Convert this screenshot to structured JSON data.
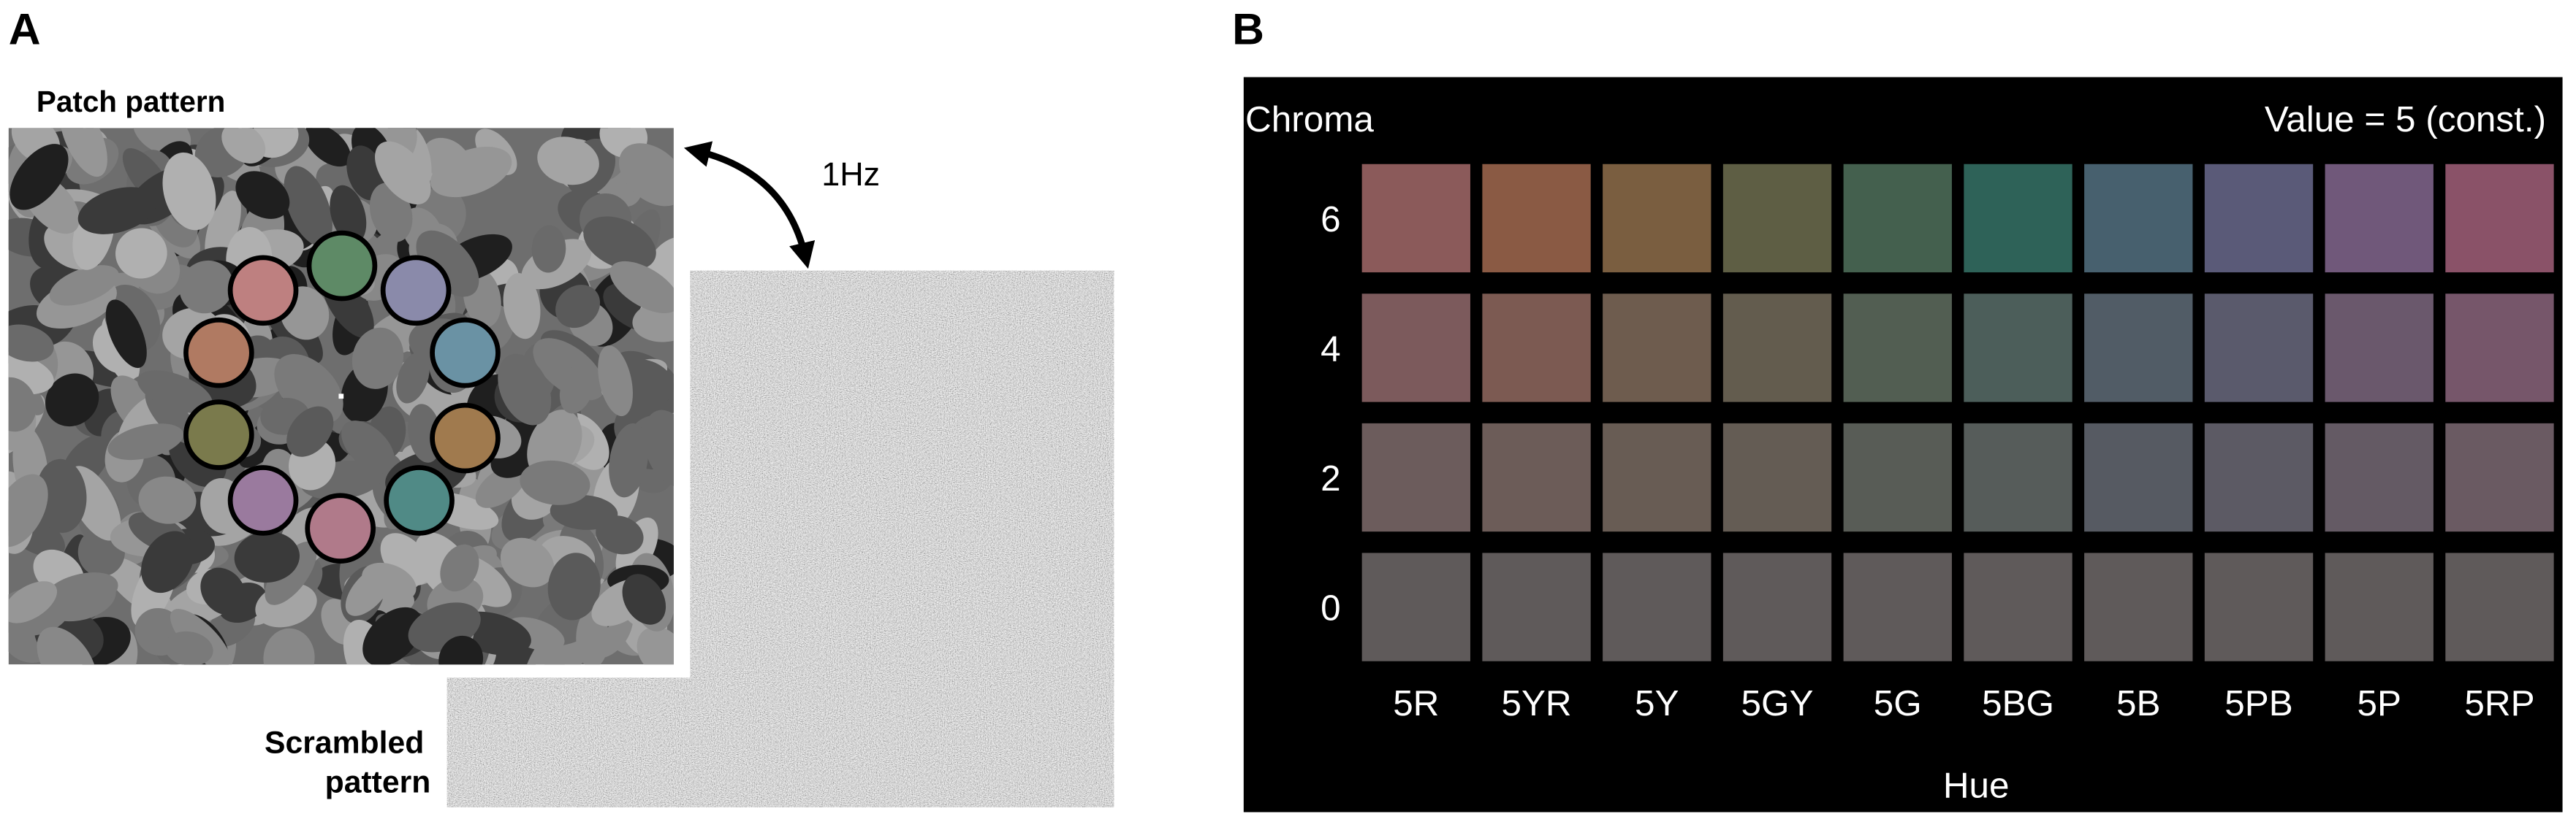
{
  "panel_a": {
    "label": "A",
    "patch_title": "Patch pattern",
    "frequency": "1Hz",
    "scrambled_title": [
      "Scrambled",
      "pattern"
    ]
  },
  "panel_b": {
    "label": "B",
    "row_axis_title": "Chroma",
    "constant_note": "Value = 5 (const.)",
    "chroma_levels": [
      "6",
      "4",
      "2",
      "0"
    ],
    "hues": [
      "5R",
      "5YR",
      "5Y",
      "5GY",
      "5G",
      "5BG",
      "5B",
      "5PB",
      "5P",
      "5RP"
    ],
    "column_axis_title": "Hue",
    "swatch_colors": [
      [
        "#8b5a5a",
        "#8a5a44",
        "#7a5e40",
        "#5e5e44",
        "#44604e",
        "#2e6258",
        "#47606e",
        "#5a5a78",
        "#70587a",
        "#8a5268"
      ],
      [
        "#7c5a5c",
        "#7c5a52",
        "#6e5c4e",
        "#635c4e",
        "#525e52",
        "#4c5e5a",
        "#515c66",
        "#5a5a6c",
        "#6a586c",
        "#76566a"
      ],
      [
        "#6c5c5c",
        "#6c5c58",
        "#685c54",
        "#645c54",
        "#585c56",
        "#565c5a",
        "#565a62",
        "#5c5a64",
        "#645a64",
        "#6a5a62"
      ],
      [
        "#5f5a5a",
        "#5f5a5a",
        "#5f5a5a",
        "#5f5a5a",
        "#5f5a5a",
        "#5f5a5a",
        "#5f5a5a",
        "#5f5a5a",
        "#5f5a5a",
        "#5f5a5a"
      ]
    ]
  }
}
